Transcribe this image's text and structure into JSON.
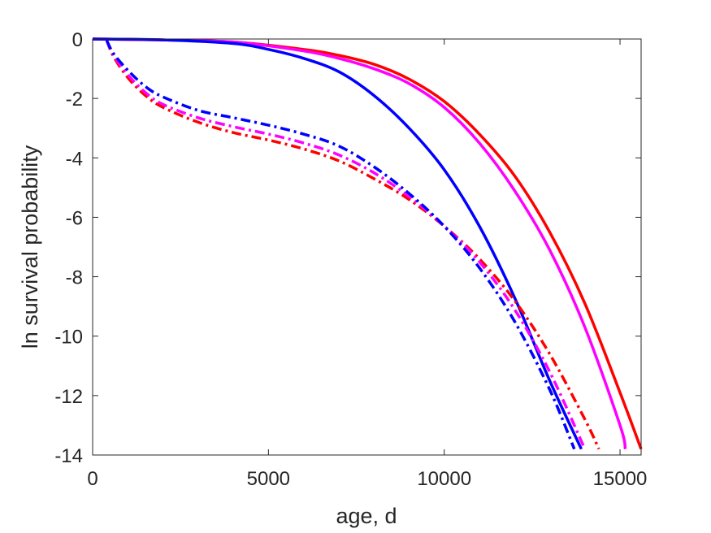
{
  "chart_data": {
    "type": "line",
    "title": "",
    "xlabel": "age, d",
    "ylabel": "ln survival probability",
    "xlim": [
      0,
      15600
    ],
    "ylim": [
      -14,
      0
    ],
    "xticks": [
      0,
      5000,
      10000,
      15000
    ],
    "xtick_labels": [
      "0",
      "5000",
      "10000",
      "15000"
    ],
    "yticks": [
      0,
      -2,
      -4,
      -6,
      -8,
      -10,
      -12,
      -14
    ],
    "ytick_labels": [
      "0",
      "-2",
      "-4",
      "-6",
      "-8",
      "-10",
      "-12",
      "-14"
    ],
    "grid": false,
    "legend": "none",
    "series": [
      {
        "color": "#ff0000",
        "style": "solid",
        "x": [
          0,
          2000,
          4000,
          6000,
          7000,
          8000,
          9000,
          10000,
          11000,
          12000,
          13000,
          14000,
          15000,
          15600
        ],
        "y": [
          0,
          -0.03,
          -0.1,
          -0.35,
          -0.55,
          -0.85,
          -1.35,
          -2.1,
          -3.2,
          -4.6,
          -6.5,
          -8.9,
          -11.9,
          -13.8
        ]
      },
      {
        "color": "#ff00ff",
        "style": "solid",
        "x": [
          0,
          2000,
          4000,
          6000,
          7000,
          8000,
          9000,
          10000,
          11000,
          12000,
          13000,
          14000,
          15000,
          15150
        ],
        "y": [
          0,
          -0.03,
          -0.1,
          -0.4,
          -0.65,
          -1.0,
          -1.5,
          -2.3,
          -3.5,
          -5.1,
          -7.1,
          -9.7,
          -13.0,
          -13.8
        ]
      },
      {
        "color": "#0000ff",
        "style": "solid",
        "x": [
          0,
          2000,
          4000,
          5000,
          6000,
          7000,
          8000,
          9000,
          10000,
          11000,
          12000,
          13000,
          13900
        ],
        "y": [
          0,
          -0.03,
          -0.15,
          -0.35,
          -0.65,
          -1.1,
          -1.9,
          -3.0,
          -4.4,
          -6.3,
          -8.7,
          -11.5,
          -13.8
        ]
      },
      {
        "color": "#ff0000",
        "style": "dashdot",
        "x": [
          400,
          600,
          1000,
          1500,
          2000,
          3000,
          4000,
          5000,
          6000,
          7000,
          8000,
          9000,
          10000,
          11000,
          12000,
          13000,
          14000,
          14400
        ],
        "y": [
          -0.05,
          -0.6,
          -1.3,
          -1.9,
          -2.3,
          -2.8,
          -3.15,
          -3.4,
          -3.7,
          -4.1,
          -4.7,
          -5.4,
          -6.3,
          -7.4,
          -8.8,
          -10.6,
          -12.8,
          -13.8
        ]
      },
      {
        "color": "#ff00ff",
        "style": "dashdot",
        "x": [
          400,
          600,
          1000,
          1500,
          2000,
          3000,
          4000,
          5000,
          6000,
          7000,
          8000,
          9000,
          10000,
          11000,
          12000,
          13000,
          14000
        ],
        "y": [
          -0.05,
          -0.55,
          -1.2,
          -1.8,
          -2.2,
          -2.65,
          -2.95,
          -3.2,
          -3.5,
          -3.9,
          -4.5,
          -5.3,
          -6.3,
          -7.5,
          -9.1,
          -11.2,
          -13.8
        ]
      },
      {
        "color": "#0000ff",
        "style": "dashdot",
        "x": [
          400,
          600,
          1000,
          1500,
          2000,
          3000,
          4000,
          5000,
          6000,
          7000,
          8000,
          9000,
          10000,
          11000,
          12000,
          13000,
          13700
        ],
        "y": [
          -0.05,
          -0.5,
          -1.05,
          -1.6,
          -1.95,
          -2.4,
          -2.65,
          -2.9,
          -3.2,
          -3.6,
          -4.3,
          -5.2,
          -6.3,
          -7.7,
          -9.5,
          -11.8,
          -13.8
        ]
      }
    ]
  }
}
